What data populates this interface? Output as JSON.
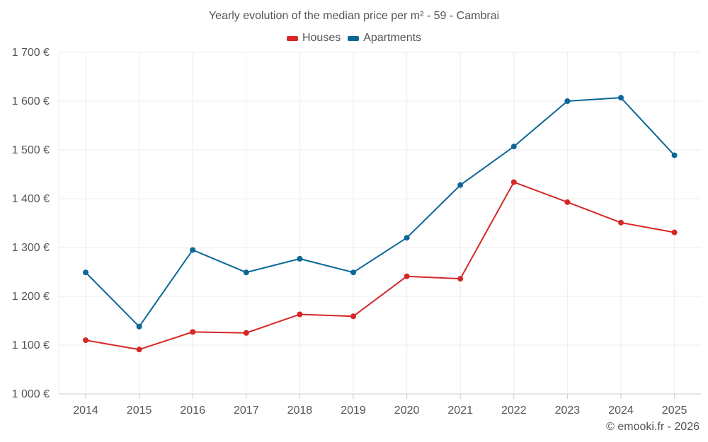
{
  "chart_data": {
    "type": "line",
    "title": "Yearly evolution of the median price per m² - 59 - Cambrai",
    "xlabel": "",
    "ylabel": "",
    "categories": [
      "2014",
      "2015",
      "2016",
      "2017",
      "2018",
      "2019",
      "2020",
      "2021",
      "2022",
      "2023",
      "2024",
      "2025"
    ],
    "ylim": [
      1000,
      1700
    ],
    "yticks": [
      1000,
      1100,
      1200,
      1300,
      1400,
      1500,
      1600,
      1700
    ],
    "ytick_labels": [
      "1 000 €",
      "1 100 €",
      "1 200 €",
      "1 300 €",
      "1 400 €",
      "1 500 €",
      "1 600 €",
      "1 700 €"
    ],
    "grid": true,
    "legend_position": "top-center",
    "series": [
      {
        "name": "Houses",
        "color": "#d62728",
        "values": [
          1110,
          1091,
          1127,
          1125,
          1163,
          1159,
          1241,
          1236,
          1434,
          1393,
          1351,
          1331
        ]
      },
      {
        "name": "Apartments",
        "color": "#0b6797",
        "values": [
          1249,
          1138,
          1295,
          1249,
          1277,
          1249,
          1320,
          1428,
          1507,
          1600,
          1607,
          1489
        ]
      }
    ],
    "credit": "© emooki.fr - 2026"
  }
}
